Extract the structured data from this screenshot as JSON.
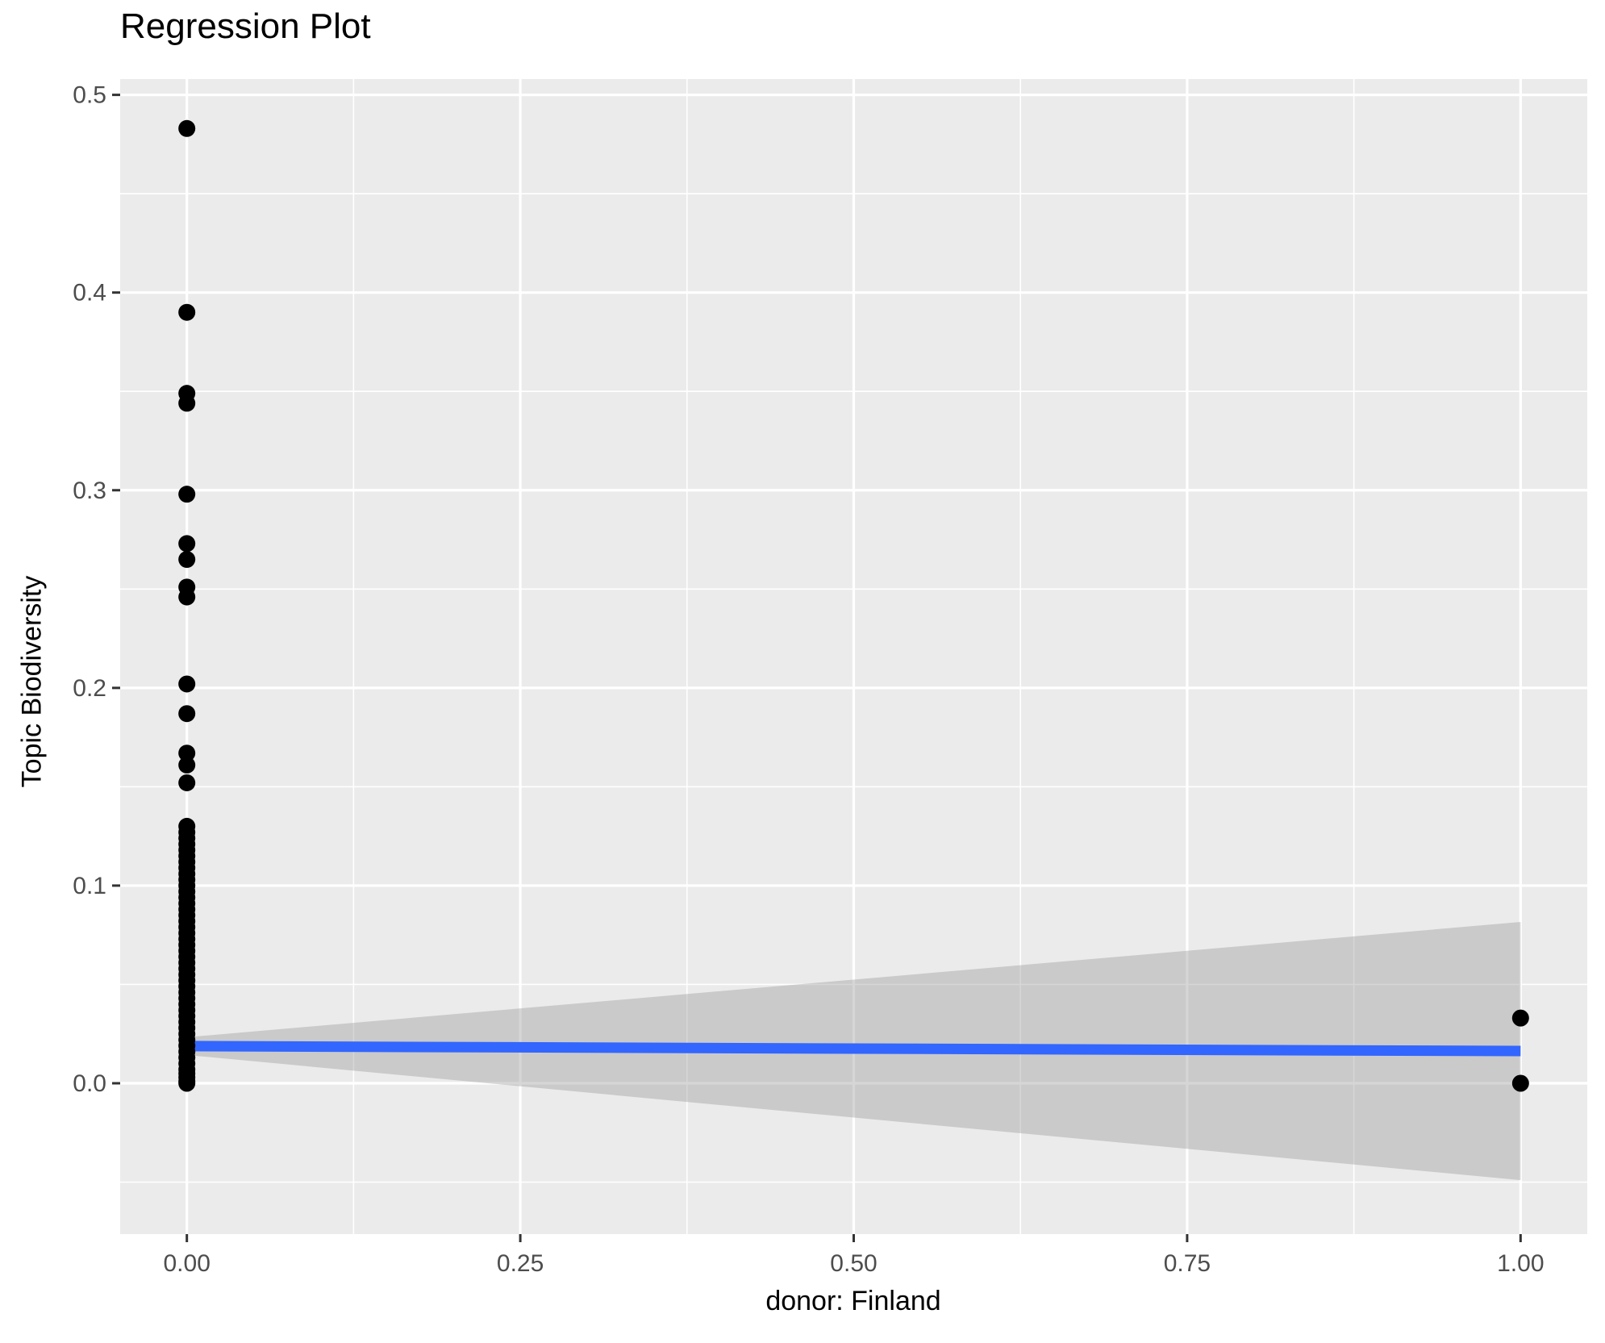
{
  "chart_data": {
    "type": "scatter",
    "title": "Regression Plot",
    "xlabel": "donor: Finland",
    "ylabel": "Topic Biodiversity",
    "xlim": [
      -0.05,
      1.05
    ],
    "ylim": [
      -0.0763,
      0.508
    ],
    "grid": "on",
    "legend": "none",
    "x_axis": {
      "ticks": [
        {
          "v": 0.0,
          "label": "0.00"
        },
        {
          "v": 0.25,
          "label": "0.25"
        },
        {
          "v": 0.5,
          "label": "0.50"
        },
        {
          "v": 0.75,
          "label": "0.75"
        },
        {
          "v": 1.0,
          "label": "1.00"
        }
      ],
      "minor_ticks": [
        0.125,
        0.375,
        0.625,
        0.875
      ]
    },
    "y_axis": {
      "ticks": [
        {
          "v": 0.0,
          "label": "0.0"
        },
        {
          "v": 0.1,
          "label": "0.1"
        },
        {
          "v": 0.2,
          "label": "0.2"
        },
        {
          "v": 0.3,
          "label": "0.3"
        },
        {
          "v": 0.4,
          "label": "0.4"
        },
        {
          "v": 0.5,
          "label": "0.5"
        }
      ],
      "minor_ticks": [
        -0.05,
        0.05,
        0.15,
        0.25,
        0.35,
        0.45
      ]
    },
    "series": [
      {
        "name": "donor = 0",
        "x": 0,
        "y_values": [
          0.483,
          0.39,
          0.349,
          0.344,
          0.298,
          0.273,
          0.265,
          0.251,
          0.246,
          0.202,
          0.187,
          0.167,
          0.161,
          0.152,
          0.13,
          0.127,
          0.124,
          0.121,
          0.118,
          0.115,
          0.112,
          0.109,
          0.106,
          0.103,
          0.1,
          0.097,
          0.094,
          0.091,
          0.088,
          0.085,
          0.082,
          0.079,
          0.076,
          0.073,
          0.07,
          0.067,
          0.064,
          0.061,
          0.058,
          0.055,
          0.052,
          0.049,
          0.046,
          0.043,
          0.04,
          0.037,
          0.034,
          0.031,
          0.028,
          0.025,
          0.022,
          0.019,
          0.016,
          0.013,
          0.01,
          0.007,
          0.005,
          0.003,
          0.001,
          0.0
        ]
      },
      {
        "name": "donor = 1",
        "x": 1,
        "y_values": [
          0.033,
          0.0
        ]
      }
    ],
    "regression_line": {
      "x": [
        0,
        1
      ],
      "y": [
        0.0188,
        0.0163
      ]
    },
    "confidence_band": {
      "x": [
        0,
        1
      ],
      "upper": [
        0.0233,
        0.0816
      ],
      "lower": [
        0.0143,
        -0.049
      ]
    },
    "colors": {
      "panel_bg": "#EBEBEB",
      "grid": "#FFFFFF",
      "point": "#000000",
      "line": "#3366FF",
      "band": "#999999",
      "band_alpha": 0.4,
      "tick_label": "#4D4D4D",
      "tick_mark": "#333333"
    }
  }
}
